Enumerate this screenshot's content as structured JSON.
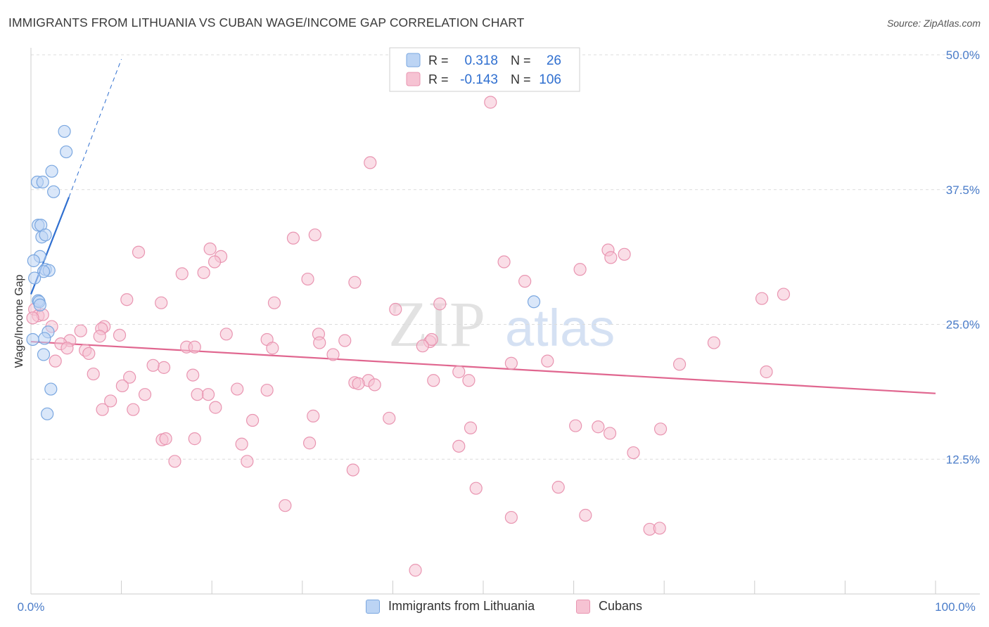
{
  "header": {
    "title": "IMMIGRANTS FROM LITHUANIA VS CUBAN WAGE/INCOME GAP CORRELATION CHART",
    "source": "Source: ZipAtlas.com"
  },
  "watermark": {
    "zip": "ZIP",
    "atlas": "atlas"
  },
  "stats_legend": {
    "rows": [
      {
        "r_label": "R =",
        "r_value": "0.318",
        "n_label": "N =",
        "n_value": "26"
      },
      {
        "r_label": "R =",
        "r_value": "-0.143",
        "n_label": "N =",
        "n_value": "106"
      }
    ]
  },
  "colors": {
    "blue_fill": "#bcd4f4",
    "blue_stroke": "#7aa7e0",
    "blue_line": "#2f6fd0",
    "pink_fill": "#f6c3d3",
    "pink_stroke": "#e995b1",
    "pink_line": "#e0668f",
    "axis_text": "#4a7cc9",
    "grid": "#dcdcdc"
  },
  "chart_data": {
    "type": "scatter",
    "title": "IMMIGRANTS FROM LITHUANIA VS CUBAN WAGE/INCOME GAP CORRELATION CHART",
    "xlabel": "",
    "ylabel": "Wage/Income Gap",
    "xlim": [
      0,
      100
    ],
    "ylim": [
      0,
      50
    ],
    "x_tick_labels": {
      "min": "0.0%",
      "max": "100.0%"
    },
    "y_ticks": [
      {
        "value": 12.5,
        "label": "12.5%"
      },
      {
        "value": 25,
        "label": "25.0%"
      },
      {
        "value": 37.5,
        "label": "37.5%"
      },
      {
        "value": 50,
        "label": "50.0%"
      }
    ],
    "grid": true,
    "legend": [
      "Immigrants from Lithuania",
      "Cubans"
    ],
    "series": [
      {
        "name": "Immigrants from Lithuania",
        "color": "blue",
        "trend": {
          "x0": 0,
          "y0": 27.8,
          "x1": 4.2,
          "y1": 36.8,
          "dash_x1": 10,
          "dash_y1": 49.6
        },
        "points": [
          [
            3.7,
            42.9
          ],
          [
            3.9,
            41.0
          ],
          [
            2.3,
            39.2
          ],
          [
            0.7,
            38.2
          ],
          [
            1.3,
            38.2
          ],
          [
            2.5,
            37.3
          ],
          [
            0.8,
            34.2
          ],
          [
            1.1,
            34.2
          ],
          [
            1.2,
            33.1
          ],
          [
            1.6,
            33.3
          ],
          [
            1.0,
            31.3
          ],
          [
            0.3,
            30.9
          ],
          [
            1.6,
            30.1
          ],
          [
            2.0,
            30.0
          ],
          [
            1.4,
            29.9
          ],
          [
            0.4,
            29.3
          ],
          [
            0.8,
            27.2
          ],
          [
            0.9,
            27.1
          ],
          [
            1.9,
            24.3
          ],
          [
            1.5,
            23.7
          ],
          [
            0.2,
            23.6
          ],
          [
            1.4,
            22.2
          ],
          [
            2.2,
            19.0
          ],
          [
            1.8,
            16.7
          ],
          [
            55.6,
            27.1
          ],
          [
            1.0,
            26.8
          ]
        ]
      },
      {
        "name": "Cubans",
        "color": "pink",
        "trend": {
          "x0": 0,
          "y0": 23.4,
          "x1": 100,
          "y1": 18.6
        },
        "points": [
          [
            50.8,
            45.6
          ],
          [
            37.5,
            40.0
          ],
          [
            31.4,
            33.3
          ],
          [
            29.0,
            33.0
          ],
          [
            19.8,
            32.0
          ],
          [
            11.9,
            31.7
          ],
          [
            63.8,
            31.9
          ],
          [
            64.1,
            31.2
          ],
          [
            65.6,
            31.5
          ],
          [
            21.0,
            31.3
          ],
          [
            20.3,
            30.8
          ],
          [
            52.3,
            30.8
          ],
          [
            60.7,
            30.1
          ],
          [
            16.7,
            29.7
          ],
          [
            19.1,
            29.8
          ],
          [
            30.6,
            29.2
          ],
          [
            35.8,
            28.9
          ],
          [
            54.6,
            29.0
          ],
          [
            83.2,
            27.8
          ],
          [
            80.8,
            27.4
          ],
          [
            10.6,
            27.3
          ],
          [
            14.4,
            27.0
          ],
          [
            26.9,
            27.0
          ],
          [
            45.2,
            26.9
          ],
          [
            40.3,
            26.4
          ],
          [
            0.4,
            26.4
          ],
          [
            0.8,
            25.8
          ],
          [
            1.3,
            25.9
          ],
          [
            0.2,
            25.6
          ],
          [
            2.3,
            24.8
          ],
          [
            8.1,
            24.8
          ],
          [
            7.8,
            24.6
          ],
          [
            5.5,
            24.4
          ],
          [
            21.6,
            24.1
          ],
          [
            31.8,
            24.1
          ],
          [
            7.6,
            23.9
          ],
          [
            9.8,
            24.0
          ],
          [
            34.7,
            23.5
          ],
          [
            26.1,
            23.6
          ],
          [
            31.9,
            23.3
          ],
          [
            4.3,
            23.5
          ],
          [
            3.3,
            23.2
          ],
          [
            17.2,
            22.9
          ],
          [
            18.1,
            22.9
          ],
          [
            26.7,
            22.8
          ],
          [
            44.1,
            23.4
          ],
          [
            75.5,
            23.3
          ],
          [
            4.0,
            22.8
          ],
          [
            6.0,
            22.6
          ],
          [
            6.4,
            22.3
          ],
          [
            33.4,
            22.2
          ],
          [
            44.3,
            23.6
          ],
          [
            43.3,
            23.0
          ],
          [
            57.1,
            21.6
          ],
          [
            53.1,
            21.4
          ],
          [
            71.7,
            21.3
          ],
          [
            2.7,
            21.6
          ],
          [
            14.7,
            21.0
          ],
          [
            13.5,
            21.2
          ],
          [
            47.3,
            20.6
          ],
          [
            81.3,
            20.6
          ],
          [
            17.9,
            20.3
          ],
          [
            6.9,
            20.4
          ],
          [
            10.9,
            20.1
          ],
          [
            37.3,
            19.8
          ],
          [
            44.5,
            19.8
          ],
          [
            35.8,
            19.6
          ],
          [
            36.2,
            19.5
          ],
          [
            38.0,
            19.4
          ],
          [
            48.4,
            19.8
          ],
          [
            10.1,
            19.3
          ],
          [
            26.1,
            18.9
          ],
          [
            22.8,
            19.0
          ],
          [
            18.4,
            18.5
          ],
          [
            19.6,
            18.5
          ],
          [
            12.6,
            18.5
          ],
          [
            8.8,
            17.9
          ],
          [
            7.9,
            17.1
          ],
          [
            11.3,
            17.1
          ],
          [
            20.4,
            17.3
          ],
          [
            31.2,
            16.5
          ],
          [
            24.5,
            16.1
          ],
          [
            39.6,
            16.3
          ],
          [
            60.2,
            15.6
          ],
          [
            48.6,
            15.4
          ],
          [
            69.6,
            15.3
          ],
          [
            62.7,
            15.5
          ],
          [
            64.0,
            14.9
          ],
          [
            18.1,
            14.4
          ],
          [
            14.5,
            14.3
          ],
          [
            23.3,
            13.9
          ],
          [
            30.8,
            14.0
          ],
          [
            47.3,
            13.7
          ],
          [
            66.6,
            13.1
          ],
          [
            15.9,
            12.3
          ],
          [
            23.9,
            12.3
          ],
          [
            35.6,
            11.5
          ],
          [
            49.2,
            9.8
          ],
          [
            58.3,
            9.9
          ],
          [
            28.1,
            8.2
          ],
          [
            53.1,
            7.1
          ],
          [
            61.3,
            7.3
          ],
          [
            68.4,
            6.0
          ],
          [
            69.5,
            6.1
          ],
          [
            42.5,
            2.2
          ],
          [
            14.9,
            14.4
          ]
        ]
      }
    ]
  }
}
